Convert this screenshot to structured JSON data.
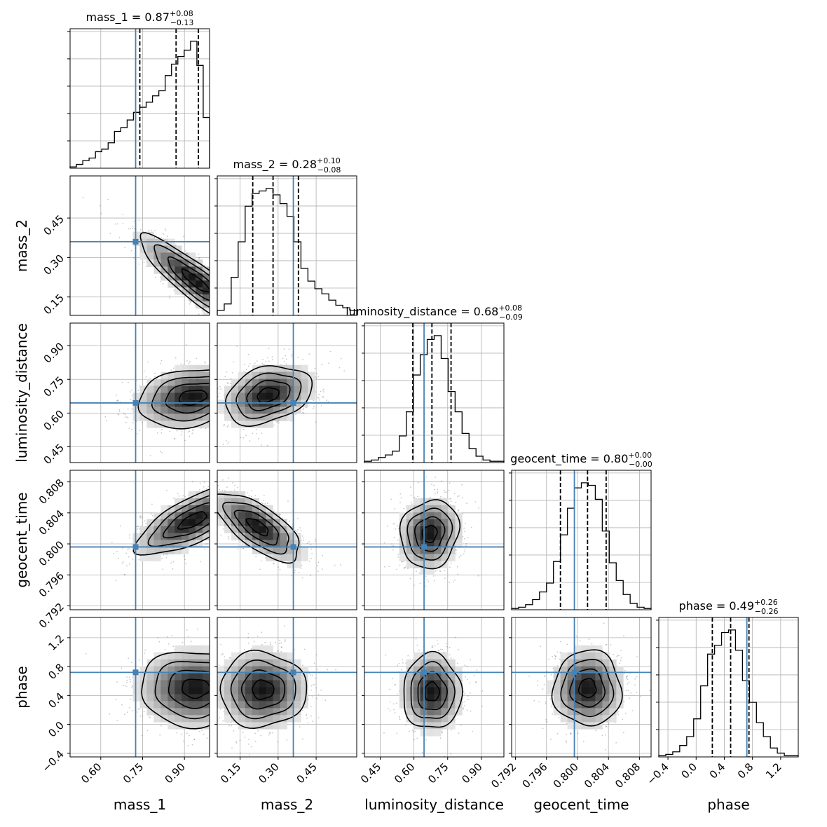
{
  "chart_data": {
    "type": "corner",
    "grid": true,
    "truth_color": "#4682b4",
    "line_color": "#000000",
    "params": [
      {
        "name": "mass_1",
        "label": "mass_1",
        "median": 0.87,
        "plus": "0.08",
        "minus": "0.13",
        "xlim": [
          0.49,
          0.99
        ],
        "ticks": [
          0.6,
          0.75,
          0.9
        ],
        "tick_labels": [
          "0.60",
          "0.75",
          "0.90"
        ],
        "quantiles": [
          0.74,
          0.87,
          0.95
        ],
        "truth": 0.725,
        "hist": [
          0.01,
          0.03,
          0.06,
          0.08,
          0.13,
          0.15,
          0.2,
          0.29,
          0.32,
          0.38,
          0.44,
          0.48,
          0.52,
          0.57,
          0.61,
          0.73,
          0.82,
          0.88,
          0.93,
          1.0,
          0.81,
          0.4
        ]
      },
      {
        "name": "mass_2",
        "label": "mass_2",
        "median": 0.28,
        "plus": "0.10",
        "minus": "0.08",
        "xlim": [
          0.06,
          0.61
        ],
        "ticks": [
          0.15,
          0.3,
          0.45
        ],
        "tick_labels": [
          "0.15",
          "0.30",
          "0.45"
        ],
        "quantiles": [
          0.2,
          0.28,
          0.38
        ],
        "truth": 0.36,
        "hist": [
          0.04,
          0.09,
          0.3,
          0.58,
          0.86,
          0.96,
          0.98,
          1.0,
          0.95,
          0.88,
          0.78,
          0.58,
          0.37,
          0.27,
          0.21,
          0.17,
          0.12,
          0.08,
          0.06,
          0.04
        ]
      },
      {
        "name": "luminosity_distance",
        "label": "luminosity_distance",
        "median": 0.68,
        "plus": "0.08",
        "minus": "0.09",
        "xlim": [
          0.38,
          1.0
        ],
        "ticks": [
          0.45,
          0.6,
          0.75,
          0.9
        ],
        "tick_labels": [
          "0.45",
          "0.60",
          "0.75",
          "0.90"
        ],
        "quantiles": [
          0.595,
          0.68,
          0.765
        ],
        "truth": 0.645,
        "hist": [
          0.01,
          0.02,
          0.04,
          0.06,
          0.09,
          0.21,
          0.4,
          0.69,
          0.85,
          0.97,
          1.0,
          0.82,
          0.56,
          0.4,
          0.23,
          0.11,
          0.05,
          0.02,
          0.01,
          0.01
        ]
      },
      {
        "name": "geocent_time",
        "label": "geocent_time",
        "median": 0.8,
        "plus": "0.00",
        "minus": "0.00",
        "xlim": [
          0.7915,
          0.8095
        ],
        "ticks": [
          0.792,
          0.796,
          0.8,
          0.804,
          0.808
        ],
        "tick_labels": [
          "0.792",
          "0.796",
          "0.800",
          "0.804",
          "0.808"
        ],
        "quantiles": [
          0.7978,
          0.8013,
          0.8037
        ],
        "truth": 0.7996,
        "hist": [
          0.01,
          0.02,
          0.04,
          0.08,
          0.14,
          0.21,
          0.38,
          0.59,
          0.8,
          0.96,
          1.0,
          0.98,
          0.87,
          0.62,
          0.37,
          0.23,
          0.12,
          0.05,
          0.02,
          0.01
        ]
      },
      {
        "name": "phase",
        "label": "phase",
        "median": 0.49,
        "plus": "0.26",
        "minus": "0.26",
        "xlim": [
          -0.53,
          1.45
        ],
        "ticks": [
          -0.4,
          0.0,
          0.4,
          0.8,
          1.2
        ],
        "tick_labels": [
          "-0.4",
          "0.0",
          "0.4",
          "0.8",
          "1.2"
        ],
        "quantiles": [
          0.23,
          0.49,
          0.75
        ],
        "truth": 0.72,
        "hist": [
          0.01,
          0.02,
          0.04,
          0.09,
          0.16,
          0.3,
          0.56,
          0.81,
          0.88,
          0.98,
          1.0,
          0.84,
          0.6,
          0.43,
          0.27,
          0.16,
          0.07,
          0.03,
          0.01,
          0.01
        ]
      }
    ],
    "pairs": [
      {
        "x": "mass_1",
        "y": "mass_2",
        "ylim": [
          0.08,
          0.61
        ],
        "yticks": [
          0.15,
          0.3,
          0.45
        ],
        "ytick_labels": [
          "0.15",
          "0.30",
          "0.45"
        ],
        "peak": [
          0.94,
          0.21
        ],
        "sd": [
          0.1,
          0.085
        ],
        "rho": -0.88
      },
      {
        "x": "mass_1",
        "y": "luminosity_distance",
        "ylim": [
          0.38,
          1.0
        ],
        "yticks": [
          0.45,
          0.6,
          0.75,
          0.9
        ],
        "ytick_labels": [
          "0.45",
          "0.60",
          "0.75",
          "0.90"
        ],
        "peak": [
          0.93,
          0.67
        ],
        "sd": [
          0.1,
          0.065
        ],
        "rho": 0.25
      },
      {
        "x": "mass_2",
        "y": "luminosity_distance",
        "ylim": [
          0.38,
          1.0
        ],
        "yticks": [
          0.45,
          0.6,
          0.75,
          0.9
        ],
        "ytick_labels": [
          "0.45",
          "0.60",
          "0.75",
          "0.90"
        ],
        "peak": [
          0.26,
          0.68
        ],
        "sd": [
          0.085,
          0.065
        ],
        "rho": 0.3
      },
      {
        "x": "luminosity_distance",
        "y": "luminosity_distance",
        "diag": true
      },
      {
        "x": "mass_1",
        "y": "geocent_time",
        "ylim": [
          0.7915,
          0.8095
        ],
        "yticks": [
          0.792,
          0.796,
          0.8,
          0.804,
          0.808
        ],
        "ytick_labels": [
          "0.792",
          "0.796",
          "0.800",
          "0.804",
          "0.808"
        ],
        "peak": [
          0.93,
          0.803
        ],
        "sd": [
          0.1,
          0.0022
        ],
        "rho": 0.7
      },
      {
        "x": "mass_2",
        "y": "geocent_time",
        "ylim": [
          0.7915,
          0.8095
        ],
        "yticks": [
          0.792,
          0.796,
          0.8,
          0.804,
          0.808
        ],
        "ytick_labels": [
          "0.792",
          "0.796",
          "0.800",
          "0.804",
          "0.808"
        ],
        "peak": [
          0.22,
          0.8022
        ],
        "sd": [
          0.085,
          0.0022
        ],
        "rho": -0.7
      },
      {
        "x": "luminosity_distance",
        "y": "geocent_time",
        "ylim": [
          0.7915,
          0.8095
        ],
        "yticks": [
          0.792,
          0.796,
          0.8,
          0.804,
          0.808
        ],
        "ytick_labels": [
          "0.792",
          "0.796",
          "0.800",
          "0.804",
          "0.808"
        ],
        "peak": [
          0.67,
          0.8013
        ],
        "sd": [
          0.065,
          0.0022
        ],
        "rho": 0.1
      },
      {
        "x": "mass_1",
        "y": "phase",
        "ylim": [
          -0.45,
          1.48
        ],
        "yticks": [
          -0.4,
          0.0,
          0.4,
          0.8,
          1.2
        ],
        "ytick_labels": [
          "-0.4",
          "0.0",
          "0.4",
          "0.8",
          "1.2"
        ],
        "peak": [
          0.94,
          0.5
        ],
        "sd": [
          0.1,
          0.26
        ],
        "rho": 0.0
      },
      {
        "x": "mass_2",
        "y": "phase",
        "ylim": [
          -0.45,
          1.48
        ],
        "yticks": [
          -0.4,
          0.0,
          0.4,
          0.8,
          1.2
        ],
        "ytick_labels": [
          "-0.4",
          "0.0",
          "0.4",
          "0.8",
          "1.2"
        ],
        "peak": [
          0.24,
          0.48
        ],
        "sd": [
          0.085,
          0.26
        ],
        "rho": 0.0
      },
      {
        "x": "luminosity_distance",
        "y": "phase",
        "ylim": [
          -0.45,
          1.48
        ],
        "yticks": [
          -0.4,
          0.0,
          0.4,
          0.8,
          1.2
        ],
        "ytick_labels": [
          "-0.4",
          "0.0",
          "0.4",
          "0.8",
          "1.2"
        ],
        "peak": [
          0.68,
          0.45
        ],
        "sd": [
          0.065,
          0.26
        ],
        "rho": 0.0
      },
      {
        "x": "geocent_time",
        "y": "phase",
        "ylim": [
          -0.45,
          1.48
        ],
        "yticks": [
          -0.4,
          0.0,
          0.4,
          0.8,
          1.2
        ],
        "ytick_labels": [
          "-0.4",
          "0.0",
          "0.4",
          "0.8",
          "1.2"
        ],
        "peak": [
          0.8013,
          0.5
        ],
        "sd": [
          0.0022,
          0.26
        ],
        "rho": 0.0
      }
    ]
  }
}
